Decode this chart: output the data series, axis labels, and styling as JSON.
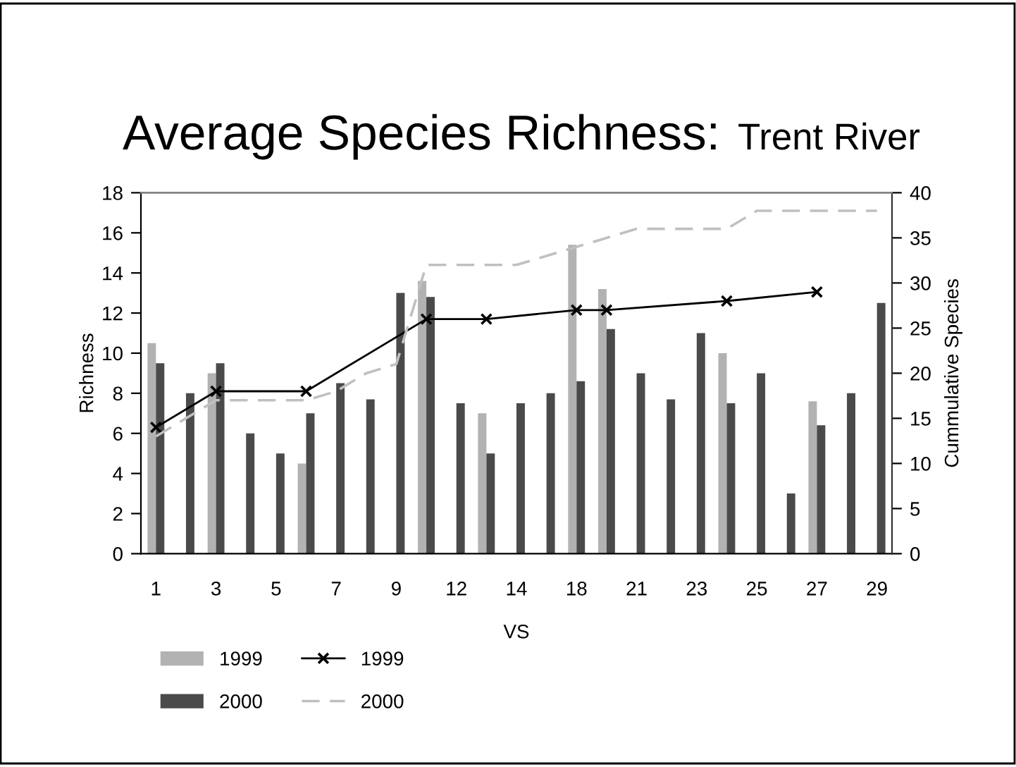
{
  "chart_data": {
    "type": "bar",
    "title": "Average Species Richness:",
    "subtitle": "Trent River",
    "xlabel": "VS",
    "ylabel": "Richness",
    "y2label": "Cummulative Species",
    "categories": [
      "1",
      null,
      "3",
      null,
      "5",
      null,
      "7",
      null,
      "9",
      null,
      "12",
      null,
      "14",
      null,
      "18",
      null,
      "21",
      null,
      "23",
      null,
      "25",
      null,
      "27",
      null,
      "29"
    ],
    "series": [
      {
        "name": "1999",
        "color": "#b2b2b2",
        "values": [
          10.5,
          null,
          9,
          null,
          null,
          4.5,
          null,
          null,
          null,
          13.6,
          null,
          7,
          null,
          null,
          15.4,
          13.2,
          null,
          null,
          null,
          10,
          null,
          null,
          7.6,
          null,
          null
        ]
      },
      {
        "name": "2000",
        "color": "#4a4a4a",
        "values": [
          9.5,
          8,
          9.5,
          6,
          5,
          7,
          8.5,
          7.7,
          13,
          12.8,
          7.5,
          5,
          7.5,
          8,
          8.6,
          11.2,
          9,
          7.7,
          11,
          7.5,
          9,
          3,
          6.4,
          8,
          12.5
        ]
      },
      {
        "name": "1999",
        "type": "line",
        "axis": "y2",
        "color": "#000000",
        "marker": "cross",
        "line_style": "solid",
        "values": [
          14,
          null,
          18,
          null,
          null,
          18,
          null,
          null,
          null,
          26,
          null,
          26,
          null,
          null,
          27,
          27,
          null,
          null,
          null,
          28,
          null,
          null,
          29,
          null,
          null
        ]
      },
      {
        "name": "2000",
        "type": "line",
        "axis": "y2",
        "color": "#c0c0c0",
        "line_style": "dashed",
        "values": [
          13,
          15,
          17,
          17,
          17,
          17,
          18,
          20,
          21,
          32,
          32,
          32,
          32,
          33,
          34,
          35,
          36,
          36,
          36,
          36,
          38,
          38,
          38,
          38,
          38
        ]
      }
    ],
    "ylim": [
      0,
      18
    ],
    "yticks": [
      0,
      2,
      4,
      6,
      8,
      10,
      12,
      14,
      16,
      18
    ],
    "y2lim": [
      0,
      40
    ],
    "y2ticks": [
      0,
      5,
      10,
      15,
      20,
      25,
      30,
      35,
      40
    ],
    "legend": "bottom left"
  }
}
